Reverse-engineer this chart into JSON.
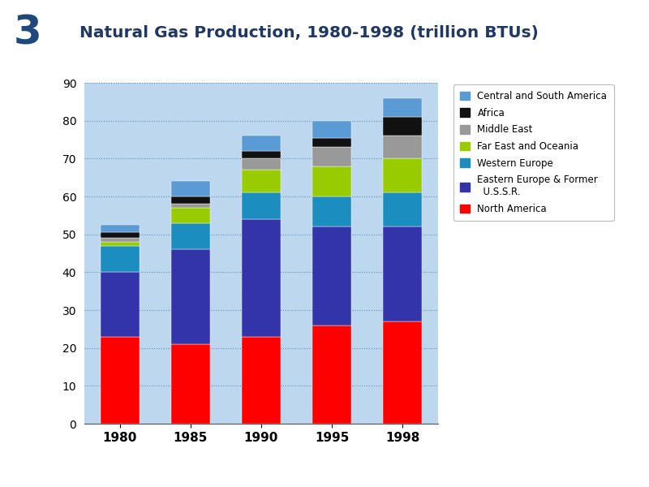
{
  "years": [
    "1980",
    "1985",
    "1990",
    "1995",
    "1998"
  ],
  "series": [
    {
      "label": "North America",
      "color": "#FF0000",
      "values": [
        23.0,
        21.0,
        23.0,
        26.0,
        27.0
      ]
    },
    {
      "label": "Eastern Europe & Former\n  U.S.S.R.",
      "color": "#3333AA",
      "values": [
        17.0,
        25.0,
        31.0,
        26.0,
        25.0
      ]
    },
    {
      "label": "Western Europe",
      "color": "#1B8DBE",
      "values": [
        7.0,
        7.0,
        7.0,
        8.0,
        9.0
      ]
    },
    {
      "label": "Far East and Oceania",
      "color": "#99CC00",
      "values": [
        1.0,
        4.0,
        6.0,
        8.0,
        9.0
      ]
    },
    {
      "label": "Middle East",
      "color": "#999999",
      "values": [
        1.0,
        1.0,
        3.0,
        5.0,
        6.0
      ]
    },
    {
      "label": "Africa",
      "color": "#111111",
      "values": [
        1.5,
        2.0,
        2.0,
        2.5,
        5.0
      ]
    },
    {
      "label": "Central and South America",
      "color": "#5B9BD5",
      "values": [
        2.0,
        4.0,
        4.0,
        4.5,
        5.0
      ]
    }
  ],
  "title": "Natural Gas Production, 1980-1998 (trillion BTUs)",
  "title_num": "3",
  "ylim": [
    0,
    90
  ],
  "yticks": [
    0,
    10,
    20,
    30,
    40,
    50,
    60,
    70,
    80,
    90
  ],
  "plot_bg": "#BDD7EE",
  "fig_bg": "#FFFFFF",
  "title_color": "#1F3864",
  "title_num_bg": "#92CDDC",
  "title_num_color": "#1F497D",
  "left_bar_color": "#00008B",
  "bottom_bar_color": "#0070C0",
  "bar_width": 0.55
}
